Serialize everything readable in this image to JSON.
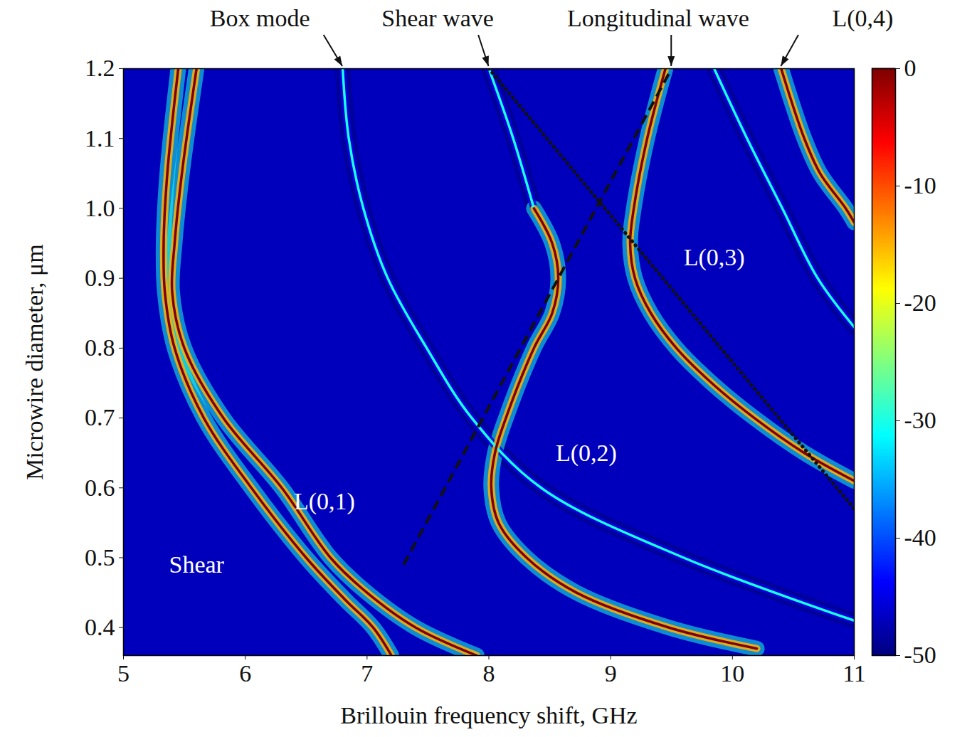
{
  "chart_data": {
    "type": "line",
    "x_label": "Brillouin frequency shift, GHz",
    "y_label": "Microwire diameter, μm",
    "xlim": [
      5,
      11
    ],
    "xticks": [
      5,
      6,
      7,
      8,
      9,
      10,
      11
    ],
    "ylim": [
      0.36,
      1.2
    ],
    "yticks": [
      0.4,
      0.5,
      0.6,
      0.7,
      0.8,
      0.9,
      {
        "value": 1,
        "label": "1.0"
      },
      1.1,
      1.2
    ],
    "colorbar": {
      "range": [
        -50,
        0
      ],
      "ticks": [
        0,
        -10,
        -20,
        -30,
        -40,
        -50
      ]
    },
    "background_level": -47,
    "series": [
      {
        "level": 0,
        "x": [
          5.45,
          5.36,
          5.33,
          5.34,
          5.42,
          5.66,
          6.05,
          6.5,
          6.82,
          7.05,
          7.2
        ],
        "values": [
          1.2,
          1.05,
          0.95,
          0.88,
          0.8,
          0.7,
          0.6,
          0.5,
          0.44,
          0.4,
          0.36
        ]
      },
      {
        "level": 0,
        "x": [
          5.6,
          5.48,
          5.42,
          5.4,
          5.5,
          5.82,
          6.3,
          6.7,
          7.0,
          7.4,
          7.9
        ],
        "values": [
          1.2,
          1.05,
          0.95,
          0.88,
          0.8,
          0.7,
          0.6,
          0.5,
          0.45,
          0.4,
          0.36
        ]
      },
      {
        "level": -30,
        "x": [
          6.8,
          6.85,
          6.97,
          7.17,
          7.49,
          7.86,
          8.43,
          9.6,
          11.0
        ],
        "values": [
          1.2,
          1.1,
          1.0,
          0.9,
          0.8,
          0.7,
          0.6,
          0.5,
          0.41
        ]
      },
      {
        "level": -30,
        "x": [
          8.0,
          8.2,
          8.37
        ],
        "values": [
          1.2,
          1.1,
          1.0
        ]
      },
      {
        "level": 0,
        "x": [
          8.37,
          8.52,
          8.57,
          8.52,
          8.37,
          8.14,
          8.05,
          8.02,
          8.08,
          8.31,
          8.72,
          9.48,
          10.2
        ],
        "values": [
          1.0,
          0.95,
          0.9,
          0.85,
          0.8,
          0.7,
          0.65,
          0.6,
          0.55,
          0.5,
          0.45,
          0.4,
          0.37
        ]
      },
      {
        "level": 0,
        "x": [
          9.45,
          9.3,
          9.19,
          9.16,
          9.2,
          9.33,
          9.54,
          9.83,
          10.18,
          10.59,
          11.0
        ],
        "values": [
          1.2,
          1.1,
          1.0,
          0.95,
          0.9,
          0.85,
          0.8,
          0.75,
          0.7,
          0.65,
          0.61
        ]
      },
      {
        "level": 0,
        "x": [
          10.4,
          10.59,
          10.72,
          10.93,
          11.0
        ],
        "values": [
          1.2,
          1.1,
          1.05,
          1.0,
          0.98
        ]
      },
      {
        "level": -30,
        "x": [
          9.85,
          10.12,
          10.41,
          10.7,
          11.0
        ],
        "values": [
          1.2,
          1.1,
          1.0,
          0.9,
          0.83
        ]
      },
      {
        "type": "guide",
        "color": "#111111",
        "line_style": "dashed",
        "x": [
          7.3,
          9.5
        ],
        "values": [
          0.49,
          1.2
        ]
      },
      {
        "type": "guide",
        "color": "#111111",
        "line_style": "dotted",
        "x": [
          8.0,
          11.0
        ],
        "values": [
          1.2,
          0.57
        ]
      }
    ],
    "annotations": [
      {
        "text": "Box mode",
        "x": 6.8,
        "y": 1.2,
        "text_x": 6.12
      },
      {
        "text": "Shear wave",
        "x": 8.0,
        "y": 1.2,
        "text_x": 7.58
      },
      {
        "text": "Longitudinal wave",
        "x": 9.5,
        "y": 1.2,
        "text_x": 9.39
      },
      {
        "text": "L(0,4)",
        "x": 10.4,
        "y": 1.2,
        "text_x": 11.07
      }
    ],
    "labels": [
      {
        "text": "L(0,3)",
        "x": 9.85,
        "y": 0.93
      },
      {
        "text": "L(0,2)",
        "x": 8.8,
        "y": 0.65
      },
      {
        "text": "L(0,1)",
        "x": 6.65,
        "y": 0.58
      },
      {
        "text": "Shear",
        "x": 5.6,
        "y": 0.49
      }
    ]
  }
}
